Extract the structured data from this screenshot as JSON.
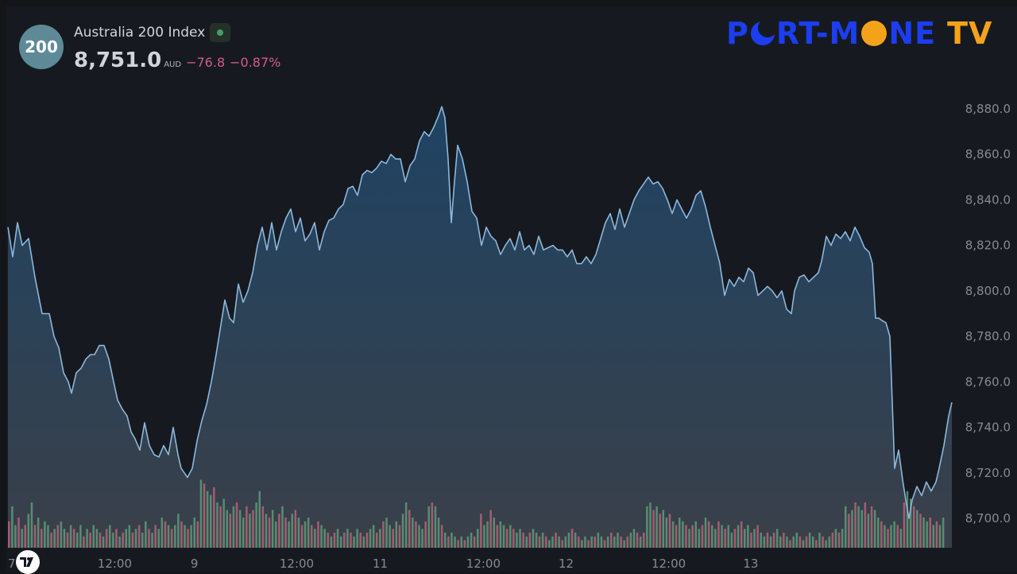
{
  "header": {
    "badge": "200",
    "name": "Australia 200 Index",
    "price": "8,751.0",
    "currency": "AUD",
    "change": "−76.8",
    "change_pct": "−0.87%"
  },
  "logo": {
    "left": "P",
    "mid1": "RT-M",
    "mid2": "NE",
    "tv": "TV"
  },
  "colors": {
    "line": "#8db7dc",
    "area_top": "#1f4363",
    "area_bottom": "#3a4049",
    "vol_up": "#5f9a78",
    "vol_down": "#b8627a",
    "axis_text": "#868993"
  },
  "icons": {
    "watermark": "tradingview-logo-icon",
    "status": "market-open-dot-icon"
  },
  "chart_data": {
    "type": "area",
    "ylim": [
      8686,
      8886
    ],
    "y_ticks": [
      8880,
      8860,
      8840,
      8820,
      8800,
      8780,
      8760,
      8740,
      8720,
      8700
    ],
    "x_ticks": [
      {
        "label": "7",
        "pos": 0.0
      },
      {
        "label": "12:00",
        "pos": 0.1344
      },
      {
        "label": "9",
        "pos": 0.2346
      },
      {
        "label": "12:00",
        "pos": 0.3635
      },
      {
        "label": "11",
        "pos": 0.4685
      },
      {
        "label": "12:00",
        "pos": 0.5984
      },
      {
        "label": "12",
        "pos": 0.7025
      },
      {
        "label": "12:00",
        "pos": 0.8316
      },
      {
        "label": "13",
        "pos": 0.9349
      }
    ],
    "points": [
      [
        0.0,
        8828
      ],
      [
        0.006,
        8815
      ],
      [
        0.012,
        8830
      ],
      [
        0.018,
        8820
      ],
      [
        0.026,
        8823
      ],
      [
        0.034,
        8806
      ],
      [
        0.043,
        8790
      ],
      [
        0.052,
        8790
      ],
      [
        0.058,
        8780
      ],
      [
        0.064,
        8775
      ],
      [
        0.07,
        8764
      ],
      [
        0.076,
        8760
      ],
      [
        0.08,
        8755
      ],
      [
        0.086,
        8764
      ],
      [
        0.092,
        8766
      ],
      [
        0.098,
        8770
      ],
      [
        0.104,
        8772
      ],
      [
        0.109,
        8772
      ],
      [
        0.115,
        8776
      ],
      [
        0.121,
        8776
      ],
      [
        0.127,
        8770
      ],
      [
        0.133,
        8760
      ],
      [
        0.138,
        8752
      ],
      [
        0.144,
        8748
      ],
      [
        0.15,
        8745
      ],
      [
        0.155,
        8738
      ],
      [
        0.16,
        8735
      ],
      [
        0.166,
        8730
      ],
      [
        0.172,
        8742
      ],
      [
        0.178,
        8732
      ],
      [
        0.184,
        8728
      ],
      [
        0.19,
        8727
      ],
      [
        0.196,
        8732
      ],
      [
        0.202,
        8728
      ],
      [
        0.208,
        8740
      ],
      [
        0.214,
        8728
      ],
      [
        0.218,
        8722
      ],
      [
        0.222,
        8720
      ],
      [
        0.226,
        8718
      ],
      [
        0.232,
        8722
      ],
      [
        0.238,
        8734
      ],
      [
        0.244,
        8743
      ],
      [
        0.25,
        8750
      ],
      [
        0.256,
        8760
      ],
      [
        0.262,
        8772
      ],
      [
        0.268,
        8785
      ],
      [
        0.273,
        8796
      ],
      [
        0.279,
        8788
      ],
      [
        0.284,
        8786
      ],
      [
        0.29,
        8803
      ],
      [
        0.296,
        8795
      ],
      [
        0.302,
        8800
      ],
      [
        0.308,
        8808
      ],
      [
        0.314,
        8820
      ],
      [
        0.32,
        8828
      ],
      [
        0.326,
        8818
      ],
      [
        0.332,
        8830
      ],
      [
        0.338,
        8818
      ],
      [
        0.344,
        8826
      ],
      [
        0.35,
        8832
      ],
      [
        0.356,
        8836
      ],
      [
        0.362,
        8826
      ],
      [
        0.368,
        8832
      ],
      [
        0.374,
        8822
      ],
      [
        0.38,
        8825
      ],
      [
        0.386,
        8830
      ],
      [
        0.392,
        8818
      ],
      [
        0.398,
        8826
      ],
      [
        0.404,
        8831
      ],
      [
        0.41,
        8832
      ],
      [
        0.416,
        8836
      ],
      [
        0.422,
        8838
      ],
      [
        0.428,
        8845
      ],
      [
        0.434,
        8846
      ],
      [
        0.44,
        8842
      ],
      [
        0.446,
        8851
      ],
      [
        0.452,
        8853
      ],
      [
        0.458,
        8852
      ],
      [
        0.464,
        8854
      ],
      [
        0.47,
        8857
      ],
      [
        0.476,
        8856
      ],
      [
        0.482,
        8860
      ],
      [
        0.488,
        8858
      ],
      [
        0.494,
        8858
      ],
      [
        0.5,
        8848
      ],
      [
        0.506,
        8855
      ],
      [
        0.512,
        8858
      ],
      [
        0.518,
        8866
      ],
      [
        0.524,
        8870
      ],
      [
        0.53,
        8868
      ],
      [
        0.536,
        8872
      ],
      [
        0.542,
        8877
      ],
      [
        0.546,
        8881
      ],
      [
        0.55,
        8876
      ],
      [
        0.554,
        8858
      ],
      [
        0.558,
        8830
      ],
      [
        0.562,
        8848
      ],
      [
        0.566,
        8864
      ],
      [
        0.572,
        8858
      ],
      [
        0.578,
        8848
      ],
      [
        0.584,
        8835
      ],
      [
        0.59,
        8832
      ],
      [
        0.596,
        8820
      ],
      [
        0.602,
        8828
      ],
      [
        0.608,
        8824
      ],
      [
        0.614,
        8822
      ],
      [
        0.62,
        8816
      ],
      [
        0.626,
        8820
      ],
      [
        0.632,
        8823
      ],
      [
        0.638,
        8818
      ],
      [
        0.644,
        8826
      ],
      [
        0.65,
        8818
      ],
      [
        0.656,
        8820
      ],
      [
        0.662,
        8816
      ],
      [
        0.668,
        8824
      ],
      [
        0.674,
        8818
      ],
      [
        0.68,
        8819
      ],
      [
        0.686,
        8820
      ],
      [
        0.692,
        8818
      ],
      [
        0.698,
        8818
      ],
      [
        0.704,
        8815
      ],
      [
        0.71,
        8818
      ],
      [
        0.716,
        8812
      ],
      [
        0.722,
        8812
      ],
      [
        0.728,
        8815
      ],
      [
        0.734,
        8812
      ],
      [
        0.74,
        8816
      ],
      [
        0.746,
        8823
      ],
      [
        0.752,
        8830
      ],
      [
        0.758,
        8834
      ],
      [
        0.764,
        8827
      ],
      [
        0.77,
        8836
      ],
      [
        0.776,
        8828
      ],
      [
        0.782,
        8834
      ],
      [
        0.788,
        8840
      ],
      [
        0.794,
        8844
      ],
      [
        0.8,
        8847
      ],
      [
        0.806,
        8850
      ],
      [
        0.812,
        8847
      ],
      [
        0.818,
        8848
      ],
      [
        0.824,
        8845
      ],
      [
        0.83,
        8840
      ],
      [
        0.836,
        8834
      ],
      [
        0.842,
        8840
      ],
      [
        0.848,
        8836
      ],
      [
        0.854,
        8832
      ],
      [
        0.86,
        8836
      ],
      [
        0.866,
        8842
      ],
      [
        0.872,
        8844
      ],
      [
        0.878,
        8837
      ],
      [
        0.884,
        8828
      ],
      [
        0.89,
        8820
      ],
      [
        0.896,
        8812
      ],
      [
        0.902,
        8798
      ],
      [
        0.908,
        8805
      ],
      [
        0.914,
        8802
      ],
      [
        0.92,
        8806
      ],
      [
        0.926,
        8804
      ],
      [
        0.932,
        8810
      ],
      [
        0.938,
        8808
      ],
      [
        0.944,
        8798
      ],
      [
        0.95,
        8800
      ],
      [
        0.956,
        8802
      ],
      [
        0.962,
        8800
      ],
      [
        0.968,
        8797
      ],
      [
        0.974,
        8800
      ],
      [
        0.98,
        8792
      ],
      [
        0.986,
        8790
      ],
      [
        0.99,
        8800
      ],
      [
        0.996,
        8806
      ],
      [
        1.002,
        8807
      ],
      [
        1.008,
        8804
      ],
      [
        1.014,
        8806
      ],
      [
        1.02,
        8808
      ],
      [
        1.024,
        8813
      ],
      [
        1.03,
        8824
      ],
      [
        1.036,
        8820
      ],
      [
        1.042,
        8825
      ],
      [
        1.048,
        8823
      ],
      [
        1.054,
        8826
      ],
      [
        1.06,
        8822
      ],
      [
        1.066,
        8828
      ],
      [
        1.072,
        8824
      ],
      [
        1.078,
        8819
      ],
      [
        1.084,
        8817
      ],
      [
        1.088,
        8812
      ],
      [
        1.092,
        8788
      ],
      [
        1.096,
        8788
      ],
      [
        1.1,
        8787
      ],
      [
        1.105,
        8786
      ],
      [
        1.11,
        8780
      ],
      [
        1.116,
        8722
      ],
      [
        1.121,
        8730
      ],
      [
        1.126,
        8717
      ],
      [
        1.13,
        8708
      ],
      [
        1.134,
        8700
      ],
      [
        1.138,
        8708
      ],
      [
        1.144,
        8714
      ],
      [
        1.15,
        8710
      ],
      [
        1.156,
        8716
      ],
      [
        1.162,
        8712
      ],
      [
        1.168,
        8716
      ],
      [
        1.172,
        8722
      ],
      [
        1.178,
        8732
      ],
      [
        1.184,
        8745
      ],
      [
        1.188,
        8751
      ]
    ],
    "volume": [
      0.35,
      0.55,
      0.3,
      0.4,
      0.25,
      0.3,
      0.45,
      0.6,
      0.3,
      0.4,
      0.25,
      0.35,
      0.3,
      0.2,
      0.25,
      0.3,
      0.35,
      0.25,
      0.2,
      0.3,
      0.25,
      0.2,
      0.3,
      0.15,
      0.25,
      0.2,
      0.3,
      0.25,
      0.2,
      0.15,
      0.25,
      0.3,
      0.2,
      0.25,
      0.15,
      0.2,
      0.25,
      0.3,
      0.2,
      0.25,
      0.3,
      0.2,
      0.35,
      0.25,
      0.2,
      0.3,
      0.25,
      0.4,
      0.35,
      0.3,
      0.25,
      0.3,
      0.45,
      0.35,
      0.3,
      0.25,
      0.3,
      0.4,
      0.35,
      0.9,
      0.85,
      0.75,
      0.7,
      0.8,
      0.6,
      0.55,
      0.65,
      0.5,
      0.45,
      0.55,
      0.6,
      0.5,
      0.4,
      0.55,
      0.45,
      0.5,
      0.6,
      0.75,
      0.55,
      0.45,
      0.4,
      0.5,
      0.35,
      0.45,
      0.55,
      0.4,
      0.35,
      0.45,
      0.5,
      0.4,
      0.3,
      0.35,
      0.4,
      0.3,
      0.25,
      0.35,
      0.3,
      0.25,
      0.2,
      0.15,
      0.2,
      0.25,
      0.15,
      0.2,
      0.25,
      0.2,
      0.15,
      0.25,
      0.2,
      0.15,
      0.2,
      0.25,
      0.3,
      0.2,
      0.25,
      0.35,
      0.4,
      0.3,
      0.25,
      0.35,
      0.3,
      0.45,
      0.6,
      0.5,
      0.4,
      0.35,
      0.3,
      0.25,
      0.35,
      0.55,
      0.6,
      0.55,
      0.4,
      0.3,
      0.2,
      0.15,
      0.2,
      0.15,
      0.1,
      0.15,
      0.1,
      0.15,
      0.2,
      0.15,
      0.25,
      0.45,
      0.3,
      0.35,
      0.5,
      0.4,
      0.3,
      0.35,
      0.3,
      0.25,
      0.3,
      0.25,
      0.2,
      0.25,
      0.2,
      0.15,
      0.2,
      0.25,
      0.2,
      0.15,
      0.2,
      0.15,
      0.1,
      0.15,
      0.2,
      0.15,
      0.1,
      0.15,
      0.2,
      0.25,
      0.2,
      0.15,
      0.1,
      0.15,
      0.1,
      0.15,
      0.15,
      0.2,
      0.15,
      0.1,
      0.15,
      0.2,
      0.15,
      0.2,
      0.15,
      0.1,
      0.15,
      0.2,
      0.25,
      0.2,
      0.15,
      0.2,
      0.55,
      0.6,
      0.5,
      0.55,
      0.45,
      0.5,
      0.4,
      0.45,
      0.35,
      0.3,
      0.4,
      0.35,
      0.3,
      0.25,
      0.3,
      0.35,
      0.25,
      0.3,
      0.4,
      0.35,
      0.3,
      0.25,
      0.35,
      0.3,
      0.25,
      0.3,
      0.2,
      0.25,
      0.3,
      0.35,
      0.25,
      0.3,
      0.2,
      0.25,
      0.3,
      0.2,
      0.15,
      0.2,
      0.15,
      0.2,
      0.25,
      0.15,
      0.2,
      0.15,
      0.1,
      0.15,
      0.2,
      0.15,
      0.1,
      0.15,
      0.2,
      0.15,
      0.1,
      0.2,
      0.15,
      0.1,
      0.15,
      0.2,
      0.25,
      0.2,
      0.25,
      0.55,
      0.45,
      0.5,
      0.6,
      0.55,
      0.5,
      0.6,
      0.45,
      0.55,
      0.5,
      0.4,
      0.35,
      0.3,
      0.25,
      0.3,
      0.35,
      0.3,
      0.25,
      0.6,
      0.75,
      0.65,
      0.55,
      0.5,
      0.45,
      0.4,
      0.35,
      0.4,
      0.3,
      0.35,
      0.3,
      0.4
    ]
  }
}
